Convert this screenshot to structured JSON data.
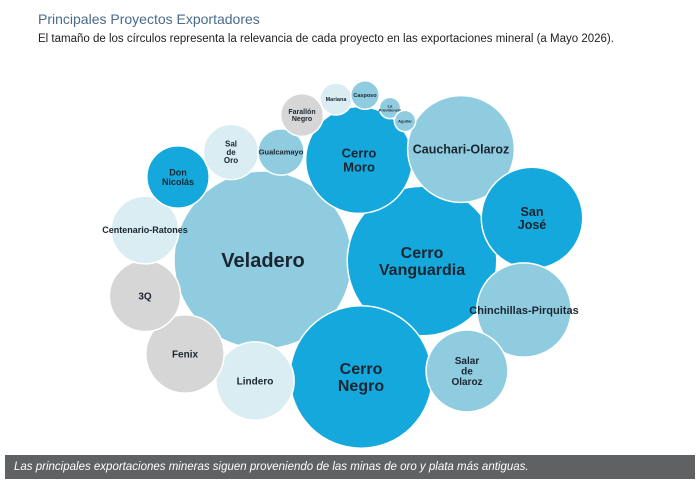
{
  "header": {
    "title": "Principales Proyectos Exportadores",
    "subtitle": "El tamaño de los círculos representa la relevancia de cada proyecto en las exportaciones mineral (a Mayo 2026)."
  },
  "caption": "Las principales exportaciones mineras siguen proveniendo de las minas de oro y plata más antiguas.",
  "colors": {
    "dark_blue": "#14a8dc",
    "light_blue": "#8fcce0",
    "pale_blue": "#d9edf3",
    "grey": "#d6d6d6",
    "caption_bg": "#5f6163"
  },
  "chart_data": {
    "type": "bubble",
    "title": "Principales Proyectos Exportadores",
    "size_encoding": "relevancia en las exportaciones mineral (a Mayo 2026)",
    "series": [
      {
        "name": "Veladero",
        "relative_size": 100,
        "color": "light_blue"
      },
      {
        "name": "Cerro Vanguardia",
        "relative_size": 84,
        "color": "dark_blue"
      },
      {
        "name": "Cerro Negro",
        "relative_size": 80,
        "color": "dark_blue"
      },
      {
        "name": "Cerro Moro",
        "relative_size": 60,
        "color": "dark_blue"
      },
      {
        "name": "Cauchari-Olaroz",
        "relative_size": 60,
        "color": "light_blue"
      },
      {
        "name": "San José",
        "relative_size": 57,
        "color": "dark_blue"
      },
      {
        "name": "Chinchillas-Pirquitas",
        "relative_size": 53,
        "color": "light_blue"
      },
      {
        "name": "Salar de Olaroz",
        "relative_size": 46,
        "color": "light_blue"
      },
      {
        "name": "Lindero",
        "relative_size": 44,
        "color": "pale_blue"
      },
      {
        "name": "Fenix",
        "relative_size": 44,
        "color": "grey"
      },
      {
        "name": "3Q",
        "relative_size": 40,
        "color": "grey"
      },
      {
        "name": "Centenario-Ratones",
        "relative_size": 38,
        "color": "pale_blue"
      },
      {
        "name": "Don Nicolás",
        "relative_size": 35,
        "color": "dark_blue"
      },
      {
        "name": "Sal de Oro",
        "relative_size": 31,
        "color": "pale_blue"
      },
      {
        "name": "Gualcamayo",
        "relative_size": 26,
        "color": "light_blue"
      },
      {
        "name": "Farallón Negro",
        "relative_size": 24,
        "color": "grey"
      },
      {
        "name": "Mariana",
        "relative_size": 18,
        "color": "pale_blue"
      },
      {
        "name": "Casposo",
        "relative_size": 16,
        "color": "light_blue"
      },
      {
        "name": "La Providencia",
        "relative_size": 12,
        "color": "light_blue"
      },
      {
        "name": "Aguilar",
        "relative_size": 12,
        "color": "light_blue"
      }
    ]
  }
}
